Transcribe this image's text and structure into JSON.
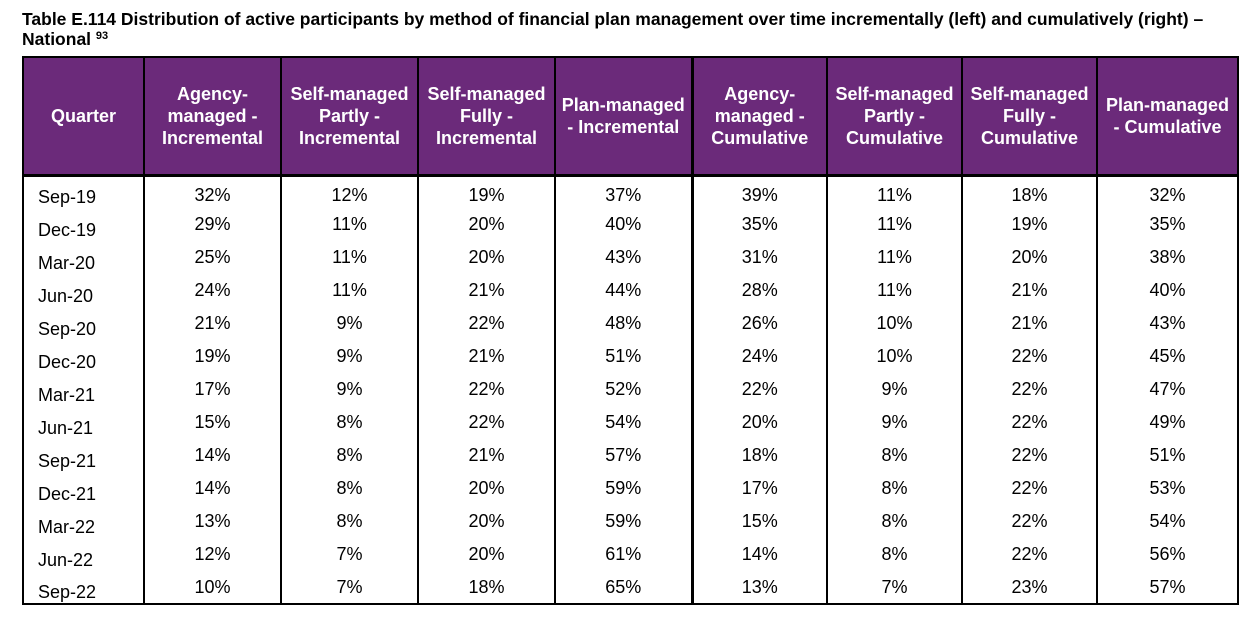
{
  "caption": {
    "text": "Table E.114 Distribution of active participants by method of financial plan management over time incrementally (left) and cumulatively (right) – National",
    "footnote": "93"
  },
  "table": {
    "headers": [
      "Quarter",
      "Agency-managed - Incremental",
      "Self-managed Partly - Incremental",
      "Self-managed Fully - Incremental",
      "Plan-managed - Incremental",
      "Agency-managed - Cumulative",
      "Self-managed Partly - Cumulative",
      "Self-managed Fully - Cumulative",
      "Plan-managed - Cumulative"
    ],
    "rows": [
      [
        "Sep-19",
        "32%",
        "12%",
        "19%",
        "37%",
        "39%",
        "11%",
        "18%",
        "32%"
      ],
      [
        "Dec-19",
        "29%",
        "11%",
        "20%",
        "40%",
        "35%",
        "11%",
        "19%",
        "35%"
      ],
      [
        "Mar-20",
        "25%",
        "11%",
        "20%",
        "43%",
        "31%",
        "11%",
        "20%",
        "38%"
      ],
      [
        "Jun-20",
        "24%",
        "11%",
        "21%",
        "44%",
        "28%",
        "11%",
        "21%",
        "40%"
      ],
      [
        "Sep-20",
        "21%",
        "9%",
        "22%",
        "48%",
        "26%",
        "10%",
        "21%",
        "43%"
      ],
      [
        "Dec-20",
        "19%",
        "9%",
        "21%",
        "51%",
        "24%",
        "10%",
        "22%",
        "45%"
      ],
      [
        "Mar-21",
        "17%",
        "9%",
        "22%",
        "52%",
        "22%",
        "9%",
        "22%",
        "47%"
      ],
      [
        "Jun-21",
        "15%",
        "8%",
        "22%",
        "54%",
        "20%",
        "9%",
        "22%",
        "49%"
      ],
      [
        "Sep-21",
        "14%",
        "8%",
        "21%",
        "57%",
        "18%",
        "8%",
        "22%",
        "51%"
      ],
      [
        "Dec-21",
        "14%",
        "8%",
        "20%",
        "59%",
        "17%",
        "8%",
        "22%",
        "53%"
      ],
      [
        "Mar-22",
        "13%",
        "8%",
        "20%",
        "59%",
        "15%",
        "8%",
        "22%",
        "54%"
      ],
      [
        "Jun-22",
        "12%",
        "7%",
        "20%",
        "61%",
        "14%",
        "8%",
        "22%",
        "56%"
      ],
      [
        "Sep-22",
        "10%",
        "7%",
        "18%",
        "65%",
        "13%",
        "7%",
        "23%",
        "57%"
      ]
    ]
  }
}
